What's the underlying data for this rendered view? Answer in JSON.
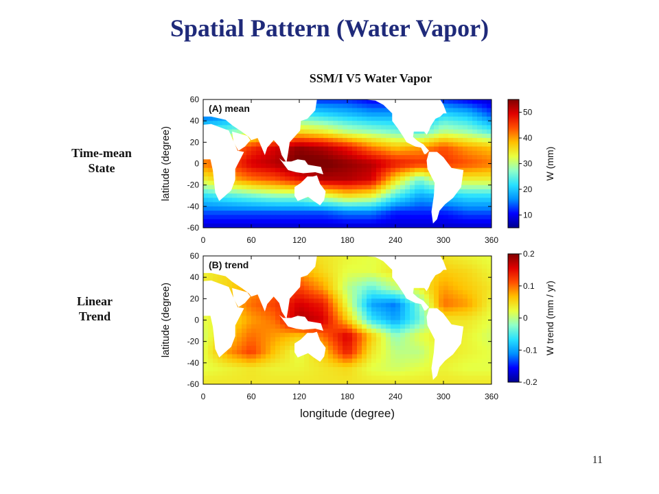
{
  "slide": {
    "title": "Spatial Pattern (Water Vapor)",
    "figure_title": "SSM/I V5 Water Vapor",
    "row_labels": [
      {
        "line1": "Time-mean",
        "line2": "State"
      },
      {
        "line1": "Linear",
        "line2": "Trend"
      }
    ],
    "page_number": "11"
  },
  "colormap": [
    "#00008f",
    "#0000ff",
    "#0090ff",
    "#28e0ff",
    "#8fffc8",
    "#e8ff40",
    "#ffc000",
    "#ff5000",
    "#e00000",
    "#800000"
  ],
  "land_color": "#ffffff",
  "chart_data": [
    {
      "type": "heatmap",
      "panel_label": "(A) mean",
      "xlabel": "",
      "ylabel": "latitude (degree)",
      "xlim": [
        0,
        360
      ],
      "ylim": [
        -60,
        60
      ],
      "xticks": [
        0,
        60,
        120,
        180,
        240,
        300,
        360
      ],
      "yticks": [
        -60,
        -40,
        -20,
        0,
        20,
        40,
        60
      ],
      "colorbar": {
        "label": "W (mm)",
        "range": [
          5,
          55
        ],
        "ticks": [
          10,
          20,
          30,
          40,
          50
        ]
      },
      "pattern": {
        "lon": [
          0,
          30,
          60,
          90,
          120,
          150,
          180,
          210,
          240,
          270,
          300,
          330,
          360
        ],
        "lat": [
          60,
          45,
          30,
          15,
          0,
          -15,
          -30,
          -45,
          -60
        ],
        "values": [
          [
            8,
            10,
            8,
            10,
            12,
            12,
            12,
            10,
            10,
            10,
            12,
            10,
            8
          ],
          [
            14,
            16,
            16,
            20,
            24,
            22,
            20,
            18,
            18,
            16,
            22,
            20,
            14
          ],
          [
            24,
            26,
            30,
            34,
            36,
            34,
            30,
            28,
            26,
            24,
            30,
            28,
            24
          ],
          [
            38,
            40,
            46,
            50,
            54,
            52,
            48,
            42,
            38,
            40,
            44,
            40,
            38
          ],
          [
            42,
            44,
            50,
            52,
            56,
            56,
            54,
            52,
            48,
            46,
            46,
            44,
            42
          ],
          [
            34,
            38,
            42,
            44,
            48,
            52,
            52,
            50,
            36,
            26,
            34,
            34,
            34
          ],
          [
            22,
            24,
            26,
            28,
            28,
            32,
            36,
            34,
            24,
            18,
            20,
            22,
            22
          ],
          [
            14,
            14,
            14,
            14,
            14,
            14,
            16,
            16,
            12,
            12,
            12,
            14,
            14
          ],
          [
            8,
            8,
            8,
            8,
            8,
            8,
            8,
            8,
            8,
            8,
            8,
            8,
            8
          ]
        ]
      }
    },
    {
      "type": "heatmap",
      "panel_label": "(B) trend",
      "xlabel": "longitude (degree)",
      "ylabel": "latitude (degree)",
      "xlim": [
        0,
        360
      ],
      "ylim": [
        -60,
        60
      ],
      "xticks": [
        0,
        60,
        120,
        180,
        240,
        300,
        360
      ],
      "yticks": [
        -60,
        -40,
        -20,
        0,
        20,
        40,
        60
      ],
      "colorbar": {
        "label": "W trend (mm / yr)",
        "range": [
          -0.2,
          0.2
        ],
        "ticks": [
          -0.2,
          -0.1,
          0,
          0.1,
          0.2
        ]
      },
      "pattern": {
        "lon": [
          0,
          30,
          60,
          90,
          120,
          150,
          180,
          210,
          240,
          270,
          300,
          330,
          360
        ],
        "lat": [
          60,
          45,
          30,
          15,
          0,
          -15,
          -30,
          -45,
          -60
        ],
        "values": [
          [
            0.02,
            0.03,
            0.04,
            0.03,
            0.05,
            0.04,
            0.03,
            0.02,
            0.03,
            0.03,
            0.04,
            0.03,
            0.02
          ],
          [
            0.03,
            0.05,
            0.06,
            0.08,
            0.08,
            0.05,
            0.02,
            0.02,
            0.04,
            0.04,
            0.06,
            0.05,
            0.03
          ],
          [
            0.04,
            0.05,
            0.08,
            0.1,
            0.12,
            0.08,
            0.0,
            -0.04,
            0.0,
            0.03,
            0.08,
            0.06,
            0.04
          ],
          [
            0.03,
            0.06,
            0.1,
            0.12,
            0.16,
            0.14,
            0.02,
            -0.1,
            -0.12,
            -0.03,
            0.1,
            0.08,
            0.03
          ],
          [
            0.02,
            0.04,
            0.08,
            0.1,
            0.18,
            0.16,
            0.06,
            -0.06,
            -0.1,
            -0.04,
            0.04,
            0.04,
            0.02
          ],
          [
            0.01,
            0.06,
            0.1,
            0.08,
            0.06,
            0.1,
            0.16,
            0.06,
            -0.02,
            0.02,
            0.04,
            0.03,
            0.01
          ],
          [
            0.02,
            0.08,
            0.12,
            0.06,
            0.02,
            0.06,
            0.14,
            0.04,
            0.0,
            0.0,
            0.04,
            0.03,
            0.02
          ],
          [
            0.02,
            0.03,
            0.04,
            0.03,
            0.03,
            0.04,
            0.05,
            0.02,
            0.01,
            0.02,
            0.03,
            0.02,
            0.02
          ],
          [
            0.04,
            0.04,
            0.04,
            0.04,
            0.04,
            0.04,
            0.04,
            0.04,
            0.04,
            0.04,
            0.04,
            0.04,
            0.04
          ]
        ]
      }
    }
  ]
}
